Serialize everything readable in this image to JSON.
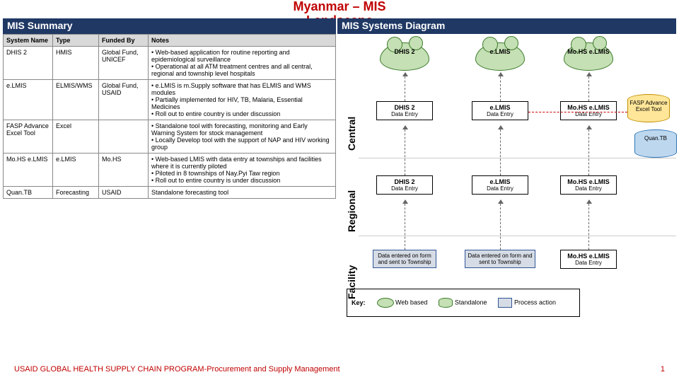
{
  "title_line1": "Myanmar – MIS",
  "title_line2": "Landscape",
  "header_left": "MIS Summary",
  "header_right": "MIS Systems Diagram",
  "columns": {
    "c0": "System Name",
    "c1": "Type",
    "c2": "Funded By",
    "c3": "Notes"
  },
  "rows": [
    {
      "name": "DHIS 2",
      "type": "HMIS",
      "fund": "Global Fund, UNICEF",
      "notes": [
        "Web-based application for routine reporting and epidemiological surveillance",
        "Operational at all ATM treatment centres and all central, regional and township level hospitals"
      ]
    },
    {
      "name": "e.LMIS",
      "type": "ELMIS/WMS",
      "fund": "Global Fund, USAID",
      "notes": [
        "e.LMIS is m.Supply software that has ELMIS and WMS modules",
        "Partially implemented for HIV, TB, Malaria, Essential Medicines",
        "Roll out to entire country is under discussion"
      ]
    },
    {
      "name": "FASP Advance Excel Tool",
      "type": "Excel",
      "fund": "",
      "notes": [
        "Standalone tool with forecasting, monitoring and Early Warning System for stock management",
        "Locally Develop tool with the support of NAP and HIV working group"
      ]
    },
    {
      "name": "Mo.HS e.LMIS",
      "type": "e.LMIS",
      "fund": "Mo.HS",
      "notes": [
        "Web-based LMIS with data entry at townships and facilities where it is currently piloted",
        "Piloted in 8 townships of Nay.Pyi Taw region",
        "Roll out to entire country is under discussion"
      ]
    },
    {
      "name": "Quan.TB",
      "type": "Forecasting",
      "fund": "USAID",
      "notes": [
        "Standalone forecasting tool"
      ]
    }
  ],
  "layers": {
    "central": "Central",
    "regional": "Regional",
    "facility": "Facility"
  },
  "clouds": {
    "dhis": "DHIS 2",
    "elmis": "e.LMIS",
    "mohs": "Mo.HS e.LMIS"
  },
  "cyls": {
    "fasp": "FASP Advance Excel Tool",
    "quan": "Quan.TB"
  },
  "data_entry": "Data Entry",
  "fac_box1": "Data entered on form and sent to Township",
  "fac_box2": "Data entered on form and sent to Township",
  "fac_box3_title": "Mo.HS e.LMIS",
  "key_label": "Key:",
  "key_web": "Web based",
  "key_standalone": "Standalone",
  "key_process": "Process action",
  "footer": "USAID GLOBAL HEALTH SUPPLY CHAIN PROGRAM-Procurement and Supply Management",
  "pagenum": "1",
  "colors": {
    "navy": "#1f3864",
    "red": "#c00000",
    "cloud_fill": "#c5e0b4",
    "cloud_border": "#3a7a2a",
    "fasp_fill": "#ffe699",
    "quan_fill": "#bdd7ee",
    "process_fill": "#d6dce5",
    "process_border": "#305496",
    "table_header": "#d9d9d9"
  }
}
